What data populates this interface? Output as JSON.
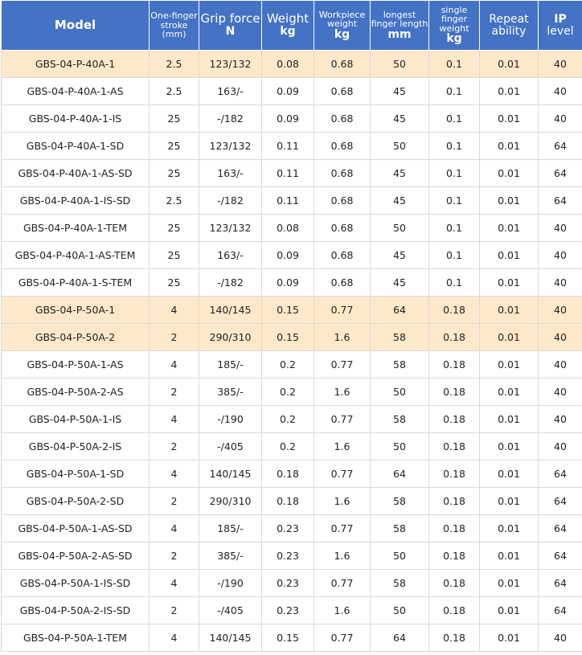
{
  "table": {
    "headers": [
      {
        "main": "Model",
        "unit": ""
      },
      {
        "main": "One-finger stroke (mm)",
        "unit": ""
      },
      {
        "main": "Grip force",
        "unit": "N"
      },
      {
        "main": "Weight",
        "unit": "kg"
      },
      {
        "main": "Workpiece weight",
        "unit": "kg"
      },
      {
        "main": "longest finger length",
        "unit": "mm"
      },
      {
        "main": "single finger weight",
        "unit": "kg"
      },
      {
        "main": "Repeat ability",
        "unit": ""
      },
      {
        "main": "IP",
        "unit": "level"
      }
    ],
    "rows": [
      {
        "highlight": true,
        "cells": [
          "GBS-04-P-40A-1",
          "2.5",
          "123/132",
          "0.08",
          "0.68",
          "50",
          "0.1",
          "0.01",
          "40"
        ]
      },
      {
        "highlight": false,
        "cells": [
          "GBS-04-P-40A-1-AS",
          "2.5",
          "163/-",
          "0.09",
          "0.68",
          "45",
          "0.1",
          "0.01",
          "40"
        ]
      },
      {
        "highlight": false,
        "cells": [
          "GBS-04-P-40A-1-IS",
          "25",
          "-/182",
          "0.09",
          "0.68",
          "45",
          "0.1",
          "0.01",
          "40"
        ]
      },
      {
        "highlight": false,
        "cells": [
          "GBS-04-P-40A-1-SD",
          "25",
          "123/132",
          "0.11",
          "0.68",
          "50",
          "0.1",
          "0.01",
          "64"
        ]
      },
      {
        "highlight": false,
        "cells": [
          "GBS-04-P-40A-1-AS-SD",
          "25",
          "163/-",
          "0.11",
          "0.68",
          "45",
          "0.1",
          "0.01",
          "64"
        ]
      },
      {
        "highlight": false,
        "cells": [
          "GBS-04-P-40A-1-IS-SD",
          "2.5",
          "-/182",
          "0.11",
          "0.68",
          "45",
          "0.1",
          "0.01",
          "64"
        ]
      },
      {
        "highlight": false,
        "cells": [
          "GBS-04-P-40A-1-TEM",
          "25",
          "123/132",
          "0.08",
          "0.68",
          "50",
          "0.1",
          "0.01",
          "40"
        ]
      },
      {
        "highlight": false,
        "cells": [
          "GBS-04-P-40A-1-AS-TEM",
          "25",
          "163/-",
          "0.09",
          "0.68",
          "45",
          "0.1",
          "0.01",
          "40"
        ]
      },
      {
        "highlight": false,
        "cells": [
          "GBS-04-P-40A-1-S-TEM",
          "25",
          "-/182",
          "0.09",
          "0.68",
          "45",
          "0.1",
          "0.01",
          "40"
        ]
      },
      {
        "highlight": true,
        "cells": [
          "GBS-04-P-50A-1",
          "4",
          "140/145",
          "0.15",
          "0.77",
          "64",
          "0.18",
          "0.01",
          "40"
        ]
      },
      {
        "highlight": true,
        "cells": [
          "GBS-04-P-50A-2",
          "2",
          "290/310",
          "0.15",
          "1.6",
          "58",
          "0.18",
          "0.01",
          "40"
        ]
      },
      {
        "highlight": false,
        "cells": [
          "GBS-04-P-50A-1-AS",
          "4",
          "185/-",
          "0.2",
          "0.77",
          "58",
          "0.18",
          "0.01",
          "40"
        ]
      },
      {
        "highlight": false,
        "cells": [
          "GBS-04-P-50A-2-AS",
          "2",
          "385/-",
          "0.2",
          "1.6",
          "50",
          "0.18",
          "0.01",
          "40"
        ]
      },
      {
        "highlight": false,
        "cells": [
          "GBS-04-P-50A-1-IS",
          "4",
          "-/190",
          "0.2",
          "0.77",
          "58",
          "0.18",
          "0.01",
          "40"
        ]
      },
      {
        "highlight": false,
        "cells": [
          "GBS-04-P-50A-2-IS",
          "2",
          "-/405",
          "0.2",
          "1.6",
          "50",
          "0.18",
          "0.01",
          "40"
        ]
      },
      {
        "highlight": false,
        "cells": [
          "GBS-04-P-50A-1-SD",
          "4",
          "140/145",
          "0.18",
          "0.77",
          "64",
          "0.18",
          "0.01",
          "64"
        ]
      },
      {
        "highlight": false,
        "cells": [
          "GBS-04-P-50A-2-SD",
          "2",
          "290/310",
          "0.18",
          "1.6",
          "58",
          "0.18",
          "0.01",
          "64"
        ]
      },
      {
        "highlight": false,
        "cells": [
          "GBS-04-P-50A-1-AS-SD",
          "4",
          "185/-",
          "0.23",
          "0.77",
          "58",
          "0.18",
          "0.01",
          "64"
        ]
      },
      {
        "highlight": false,
        "cells": [
          "GBS-04-P-50A-2-AS-SD",
          "2",
          "385/-",
          "0.23",
          "1.6",
          "50",
          "0.18",
          "0.01",
          "64"
        ]
      },
      {
        "highlight": false,
        "cells": [
          "GBS-04-P-50A-1-IS-SD",
          "4",
          "-/190",
          "0.23",
          "0.77",
          "58",
          "0.18",
          "0.01",
          "64"
        ]
      },
      {
        "highlight": false,
        "cells": [
          "GBS-04-P-50A-2-IS-SD",
          "2",
          "-/405",
          "0.23",
          "1.6",
          "50",
          "0.18",
          "0.01",
          "64"
        ]
      },
      {
        "highlight": false,
        "cells": [
          "GBS-04-P-50A-1-TEM",
          "4",
          "140/145",
          "0.15",
          "0.77",
          "64",
          "0.18",
          "0.01",
          "40"
        ]
      }
    ]
  }
}
